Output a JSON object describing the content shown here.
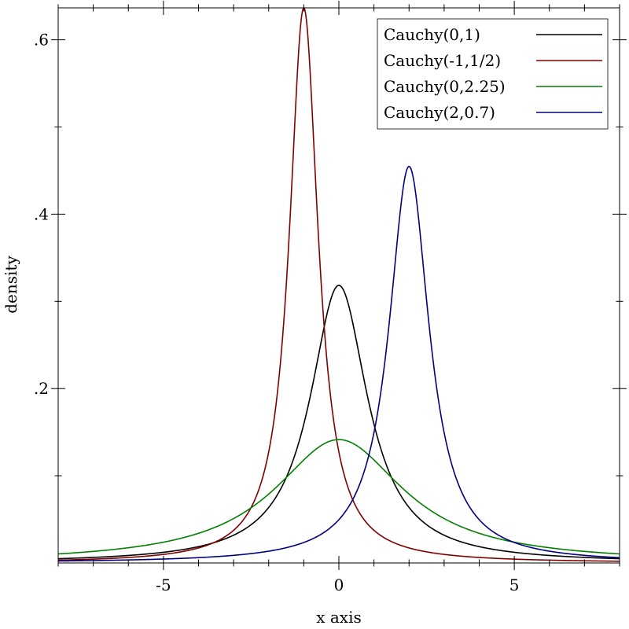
{
  "chart_data": {
    "type": "line",
    "title": "",
    "xlabel": "x axis",
    "ylabel": "density",
    "xlim": [
      -8,
      8
    ],
    "ylim": [
      0,
      0.6366
    ],
    "x_ticks": [
      {
        "value": -5,
        "label": "-5"
      },
      {
        "value": 0,
        "label": "0"
      },
      {
        "value": 5,
        "label": "5"
      }
    ],
    "x_minor_step": 1,
    "y_ticks": [
      {
        "value": 0.2,
        "label": ".2"
      },
      {
        "value": 0.4,
        "label": ".4"
      },
      {
        "value": 0.6,
        "label": ".6"
      }
    ],
    "y_minor_step": 0.1,
    "grid": false,
    "legend_position": "top-right",
    "function": "Cauchy density f(x) = 1 / (pi * scale * (1 + ((x - location)/scale)^2))",
    "series": [
      {
        "name": "Cauchy(0,1)",
        "location": 0,
        "scale": 1,
        "color": "#000000"
      },
      {
        "name": "Cauchy(-1,1/2)",
        "location": -1,
        "scale": 0.5,
        "color": "#800000"
      },
      {
        "name": "Cauchy(0,2.25)",
        "location": 0,
        "scale": 2.25,
        "color": "#008000"
      },
      {
        "name": "Cauchy(2,0.7)",
        "location": 2,
        "scale": 0.7,
        "color": "#000080"
      }
    ]
  }
}
